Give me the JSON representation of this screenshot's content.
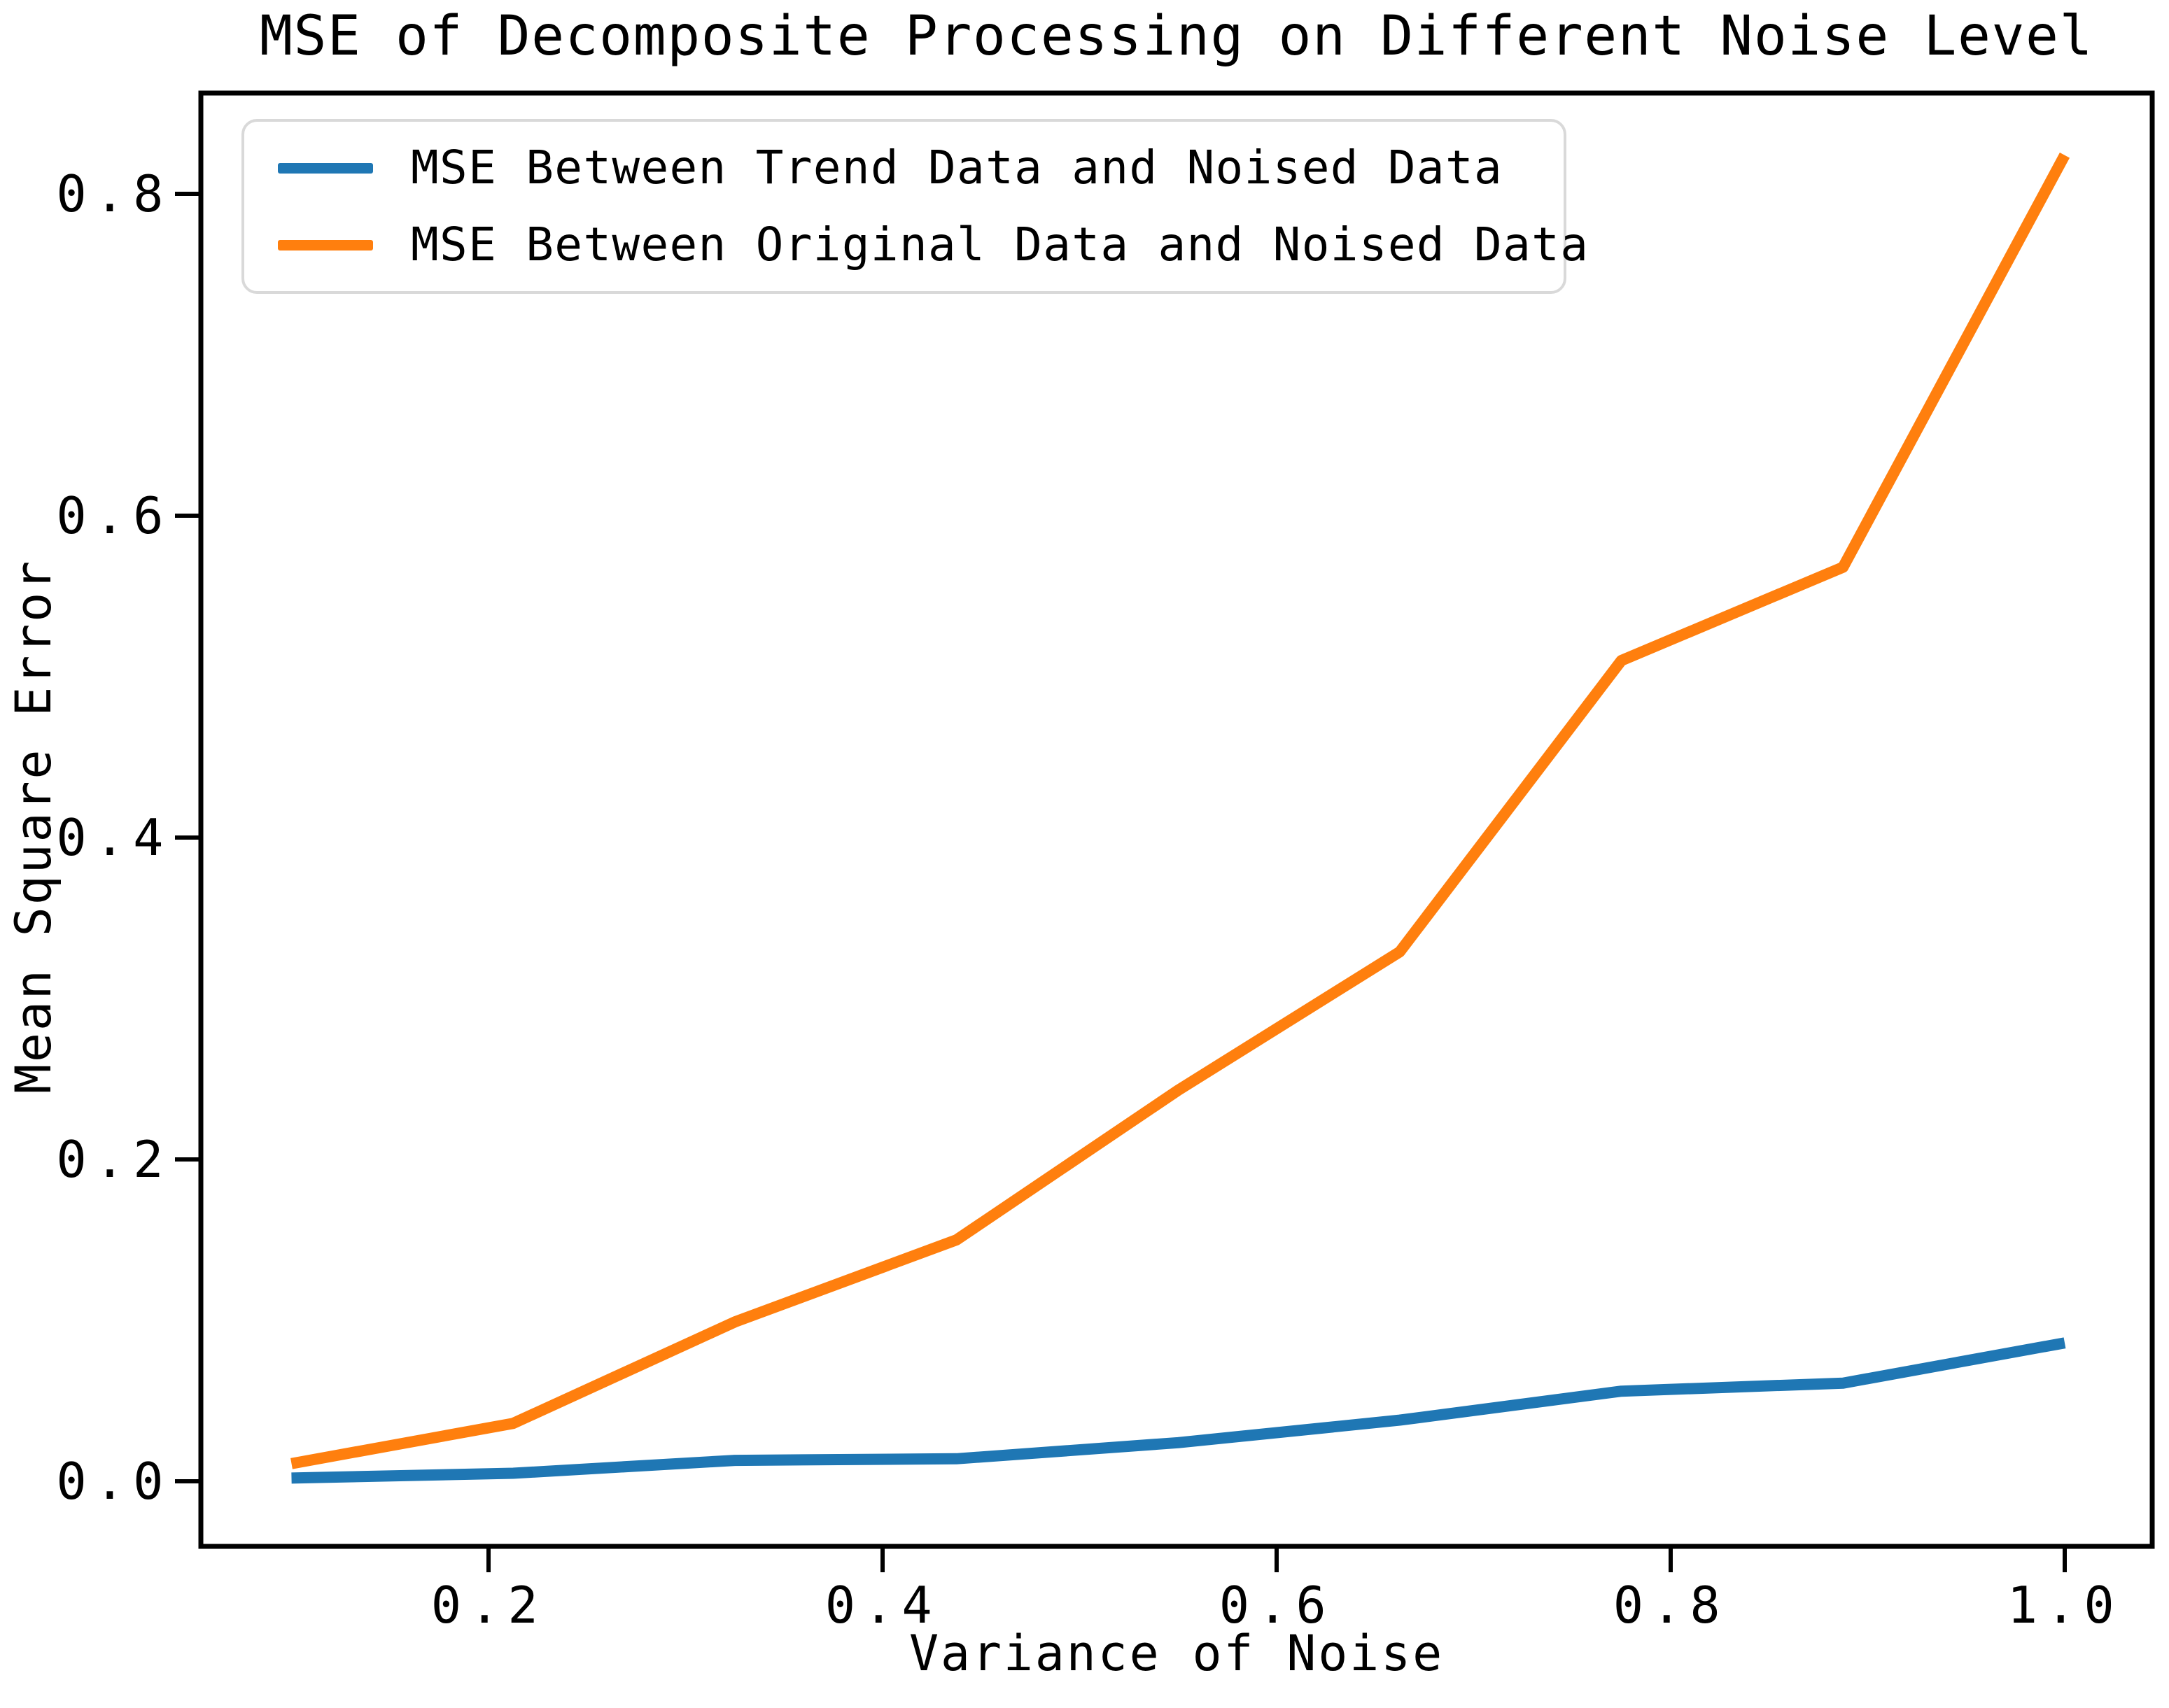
{
  "title": "MSE of Decomposite Processing on Different Noise Level",
  "axes": {
    "xlabel": "Variance of Noise",
    "ylabel": "Mean Square Error",
    "x_tick_labels": [
      "0.2",
      "0.4",
      "0.6",
      "0.8",
      "1.0"
    ],
    "x_tick_values": [
      0.2,
      0.4,
      0.6,
      0.8,
      1.0
    ],
    "y_tick_labels": [
      "0.0",
      "0.2",
      "0.4",
      "0.6",
      "0.8"
    ],
    "y_tick_values": [
      0.0,
      0.2,
      0.4,
      0.6,
      0.8
    ]
  },
  "legend": {
    "items": [
      {
        "label": "MSE Between Trend Data and Noised Data",
        "color": "#1f77b4"
      },
      {
        "label": "MSE Between Original Data and Noised Data",
        "color": "#ff7f0e"
      }
    ]
  },
  "chart_data": {
    "type": "line",
    "title": "MSE of Decomposite Processing on Different Noise Level",
    "xlabel": "Variance of Noise",
    "ylabel": "Mean Square Error",
    "x": [
      0.1,
      0.2125,
      0.325,
      0.4375,
      0.55,
      0.6625,
      0.775,
      0.8875,
      1.0
    ],
    "series": [
      {
        "name": "MSE Between Trend Data and Noised Data",
        "color": "#1f77b4",
        "values": [
          0.002,
          0.005,
          0.013,
          0.014,
          0.024,
          0.038,
          0.056,
          0.061,
          0.086
        ]
      },
      {
        "name": "MSE Between Original Data and Noised Data",
        "color": "#ff7f0e",
        "values": [
          0.011,
          0.036,
          0.099,
          0.15,
          0.243,
          0.329,
          0.51,
          0.568,
          0.824
        ]
      }
    ],
    "xlim": [
      0.055,
      1.045
    ],
    "ylim": [
      -0.04,
      0.863
    ],
    "grid": false,
    "legend_position": "upper left"
  }
}
